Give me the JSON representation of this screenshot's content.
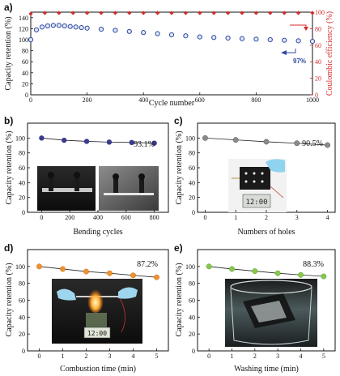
{
  "colors": {
    "retention_a": "#2f4aa0",
    "efficiency_a": "#d42a2a",
    "b_marker": "#3b3a8c",
    "c_marker": "#8a8a8a",
    "d_marker": "#f0922e",
    "e_marker": "#86c84a"
  },
  "chart_data": [
    {
      "panel": "a)",
      "type": "scatter",
      "xlabel": "Cycle number",
      "ylabel": "Capacity retention (%)",
      "ylabel2": "Coulombic efficiency (%)",
      "xlim": [
        0,
        1000
      ],
      "ylim": [
        0,
        150
      ],
      "ylim2": [
        0,
        100
      ],
      "xticks": [
        0,
        200,
        400,
        600,
        800,
        1000
      ],
      "yticks": [
        0,
        20,
        40,
        60,
        80,
        100,
        120,
        140
      ],
      "yticks2": [
        0,
        20,
        40,
        60,
        80,
        100
      ],
      "annotation": "97%",
      "series": [
        {
          "axis": "left",
          "x": [
            0,
            20,
            40,
            60,
            80,
            100,
            120,
            140,
            160,
            180,
            200,
            250,
            300,
            350,
            400,
            450,
            500,
            550,
            600,
            650,
            700,
            750,
            800,
            850,
            900,
            950,
            1000
          ],
          "values": [
            100,
            118,
            123,
            125,
            126,
            126,
            125,
            124,
            123,
            122,
            121,
            119,
            117,
            115,
            113,
            111,
            109,
            107,
            105,
            104,
            103,
            102,
            101,
            100,
            99,
            98,
            97
          ]
        },
        {
          "axis": "right",
          "x": [
            0,
            50,
            100,
            150,
            200,
            250,
            300,
            350,
            400,
            450,
            500,
            550,
            600,
            650,
            700,
            750,
            800,
            850,
            900,
            950,
            1000
          ],
          "values": [
            98,
            99,
            99,
            99,
            99,
            99,
            99,
            99,
            99,
            99,
            99,
            99,
            99,
            99,
            99,
            99,
            99,
            99,
            99,
            99,
            99
          ]
        }
      ]
    },
    {
      "panel": "b)",
      "type": "line",
      "xlabel": "Bending cycles",
      "ylabel": "Capacity retention (%)",
      "xlim": [
        -100,
        900
      ],
      "ylim": [
        0,
        120
      ],
      "xticks": [
        0,
        200,
        400,
        600,
        800
      ],
      "yticks": [
        0,
        20,
        40,
        60,
        80,
        100
      ],
      "annotation": "93.1%",
      "x": [
        0,
        160,
        320,
        480,
        640,
        800
      ],
      "values": [
        100,
        97,
        95.5,
        94.5,
        94,
        93.1
      ]
    },
    {
      "panel": "c)",
      "type": "line",
      "xlabel": "Numbers of holes",
      "ylabel": "Capacity retention (%)",
      "xlim": [
        -0.25,
        4.25
      ],
      "ylim": [
        0,
        120
      ],
      "xticks": [
        0,
        1,
        2,
        3,
        4
      ],
      "yticks": [
        0,
        20,
        40,
        60,
        80,
        100
      ],
      "annotation": "90.5%",
      "x": [
        0,
        1,
        2,
        3,
        4
      ],
      "values": [
        100,
        97.5,
        95,
        93,
        90.5
      ]
    },
    {
      "panel": "d)",
      "type": "line",
      "xlabel": "Combustion  time (min)",
      "ylabel": "Capacity retention (%)",
      "xlim": [
        -0.5,
        5.5
      ],
      "ylim": [
        0,
        120
      ],
      "xticks": [
        0,
        1,
        2,
        3,
        4,
        5
      ],
      "yticks": [
        0,
        20,
        40,
        60,
        80,
        100
      ],
      "annotation": "87.2%",
      "x": [
        0,
        1,
        2,
        3,
        4,
        5
      ],
      "values": [
        100,
        97,
        94,
        92,
        89.5,
        87.2
      ]
    },
    {
      "panel": "e)",
      "type": "line",
      "xlabel": "Washing  time (min)",
      "ylabel": "Capacity retention (%)",
      "xlim": [
        -0.5,
        5.5
      ],
      "ylim": [
        0,
        120
      ],
      "xticks": [
        0,
        1,
        2,
        3,
        4,
        5
      ],
      "yticks": [
        0,
        20,
        40,
        60,
        80,
        100
      ],
      "annotation": "88.3%",
      "x": [
        0,
        1,
        2,
        3,
        4,
        5
      ],
      "values": [
        100,
        97,
        94.5,
        92,
        90,
        88.3
      ]
    }
  ],
  "photos": {
    "c_clock_text": "12:00",
    "d_clock_text": "12:00"
  }
}
